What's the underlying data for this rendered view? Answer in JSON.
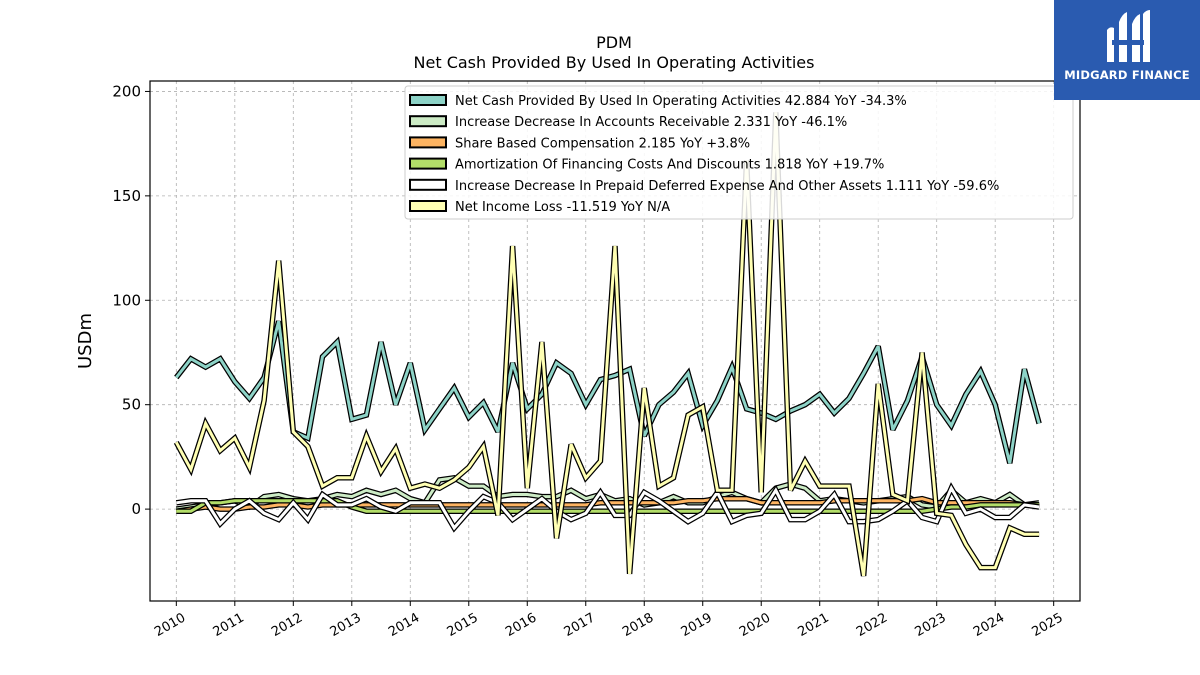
{
  "chart_data": {
    "type": "line",
    "title": "PDM",
    "subtitle": "Net Cash Provided By Used In Operating Activities",
    "ylabel": "USDm",
    "xlabel": "",
    "xlim": [
      2009.55,
      2025.45
    ],
    "ylim": [
      -44,
      205
    ],
    "yticks": [
      0,
      50,
      100,
      150,
      200
    ],
    "xticks": [
      2010,
      2011,
      2012,
      2013,
      2014,
      2015,
      2016,
      2017,
      2018,
      2019,
      2020,
      2021,
      2022,
      2023,
      2024,
      2025
    ],
    "grid": true,
    "legend_position": "top-right",
    "x": [
      2010.0,
      2010.25,
      2010.5,
      2010.75,
      2011.0,
      2011.25,
      2011.5,
      2011.75,
      2012.0,
      2012.25,
      2012.5,
      2012.75,
      2013.0,
      2013.25,
      2013.5,
      2013.75,
      2014.0,
      2014.25,
      2014.5,
      2014.75,
      2015.0,
      2015.25,
      2015.5,
      2015.75,
      2016.0,
      2016.25,
      2016.5,
      2016.75,
      2017.0,
      2017.25,
      2017.5,
      2017.75,
      2018.0,
      2018.25,
      2018.5,
      2018.75,
      2019.0,
      2019.25,
      2019.5,
      2019.75,
      2020.0,
      2020.25,
      2020.5,
      2020.75,
      2021.0,
      2021.25,
      2021.5,
      2021.75,
      2022.0,
      2022.25,
      2022.5,
      2022.75,
      2023.0,
      2023.25,
      2023.5,
      2023.75,
      2024.0,
      2024.25,
      2024.5,
      2024.75
    ],
    "series": [
      {
        "name": "Net Cash Provided By Used In Operating Activities  42.884 YoY -34.3%",
        "color": "#8dd3c7",
        "values": [
          63,
          72,
          68,
          72,
          61,
          53,
          63,
          90,
          37,
          34,
          73,
          80,
          43,
          45,
          80,
          50,
          70,
          38,
          48,
          58,
          44,
          51,
          37,
          70,
          48,
          55,
          70,
          65,
          50,
          62,
          64,
          67,
          35,
          50,
          56,
          65,
          40,
          52,
          68,
          48,
          46,
          43,
          47,
          50,
          55,
          46,
          53,
          65,
          78,
          38,
          52,
          73,
          50,
          40,
          55,
          66,
          50,
          22,
          67,
          41
        ]
      },
      {
        "name": "Increase Decrease In Accounts Receivable  2.331 YoY -46.1%",
        "color": "#ccebc5",
        "values": [
          0,
          1,
          2,
          3,
          4,
          1,
          6,
          7,
          5,
          4,
          5,
          7,
          6,
          9,
          7,
          9,
          5,
          3,
          14,
          15,
          11,
          11,
          6,
          7,
          7,
          6,
          6,
          9,
          5,
          7,
          4,
          5,
          2,
          3,
          6,
          3,
          3,
          6,
          8,
          5,
          3,
          10,
          12,
          10,
          4,
          5,
          4,
          3,
          4,
          5,
          6,
          2,
          1,
          9,
          3,
          5,
          3,
          7,
          2,
          3
        ]
      },
      {
        "name": "Share Based Compensation  2.185 YoY +3.8%",
        "color": "#fdb462",
        "values": [
          -1,
          0,
          1,
          0,
          0,
          1,
          1,
          2,
          2,
          1,
          2,
          2,
          2,
          2,
          2,
          2,
          2,
          2,
          2,
          2,
          2,
          2,
          2,
          2,
          2,
          2,
          2,
          2,
          2,
          3,
          3,
          3,
          3,
          3,
          3,
          4,
          4,
          5,
          5,
          5,
          3,
          3,
          3,
          3,
          3,
          4,
          4,
          4,
          4,
          4,
          4,
          5,
          3,
          3,
          3,
          3,
          3,
          3,
          2,
          2
        ]
      },
      {
        "name": "Amortization Of Financing Costs And Discounts  1.818 YoY +19.7%",
        "color": "#b3de69",
        "values": [
          -1,
          -1,
          3,
          3,
          4,
          4,
          4,
          4,
          4,
          4,
          4,
          4,
          1,
          -1,
          -1,
          -1,
          -1,
          -1,
          -1,
          -1,
          -1,
          -1,
          -1,
          -1,
          -1,
          -1,
          -1,
          -1,
          -1,
          -1,
          -1,
          -1,
          -1,
          -1,
          -1,
          -1,
          -1,
          -1,
          -1,
          -1,
          -1,
          -1,
          -1,
          -1,
          -1,
          -1,
          -1,
          -1,
          -1,
          -1,
          -1,
          -1,
          0,
          1,
          1,
          2,
          2,
          2,
          2,
          2
        ]
      },
      {
        "name": "Increase Decrease In Prepaid Deferred Expense And Other Assets  1.111 YoY -59.6%",
        "color": "#ffffff",
        "values": [
          3,
          4,
          4,
          -7,
          0,
          4,
          -2,
          -5,
          3,
          -5,
          7,
          2,
          2,
          5,
          1,
          -1,
          3,
          3,
          3,
          -9,
          -1,
          6,
          3,
          -5,
          0,
          5,
          -1,
          -5,
          -2,
          8,
          -3,
          -3,
          8,
          4,
          -1,
          -6,
          -2,
          8,
          -6,
          -3,
          -2,
          9,
          -5,
          -5,
          -1,
          7,
          -6,
          -6,
          -5,
          -1,
          4,
          -4,
          -6,
          10,
          -2,
          0,
          -4,
          -4,
          2,
          1
        ]
      },
      {
        "name": "Net Income Loss  -11.519 YoY N/A",
        "color": "#ffffb3",
        "values": [
          32,
          19,
          41,
          28,
          34,
          20,
          52,
          119,
          37,
          30,
          11,
          15,
          15,
          35,
          18,
          29,
          10,
          12,
          10,
          14,
          20,
          30,
          -3,
          126,
          10,
          80,
          -14,
          31,
          15,
          23,
          126,
          -31,
          58,
          11,
          15,
          45,
          49,
          9,
          9,
          167,
          8,
          190,
          9,
          23,
          11,
          11,
          11,
          -32,
          60,
          7,
          4,
          75,
          -2,
          -3,
          -17,
          -28,
          -28,
          -9,
          -12,
          -12
        ]
      }
    ]
  },
  "logo": {
    "text": "MIDGARD FINANCE"
  }
}
